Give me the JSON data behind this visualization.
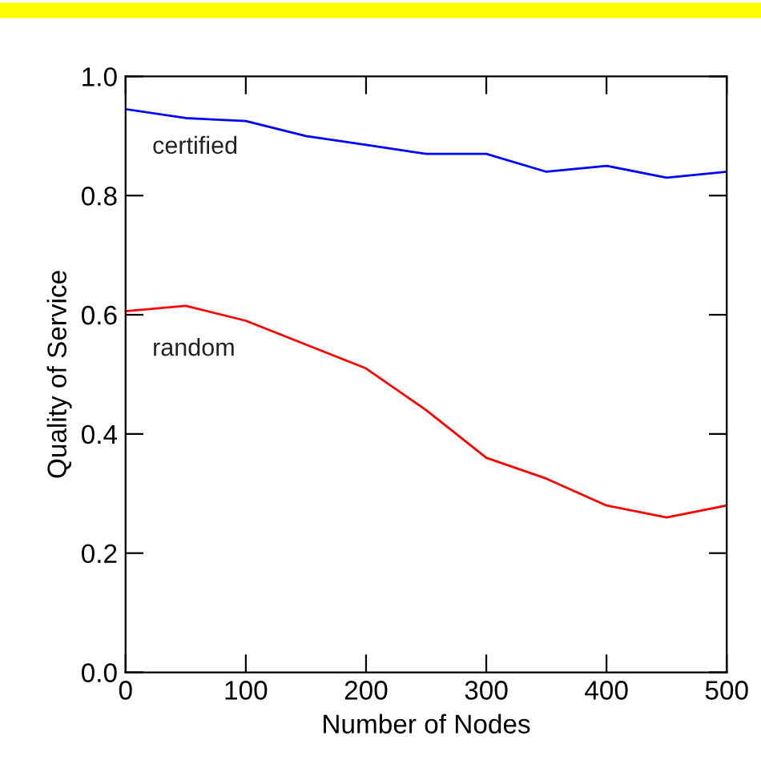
{
  "chart_data": {
    "type": "line",
    "xlabel": "Number of Nodes",
    "ylabel": "Quality of Service",
    "x": [
      0,
      50,
      100,
      150,
      200,
      250,
      300,
      350,
      400,
      450,
      500
    ],
    "series": [
      {
        "name": "certified",
        "color": "#0000ff",
        "values": [
          0.945,
          0.93,
          0.925,
          0.9,
          0.885,
          0.87,
          0.87,
          0.84,
          0.85,
          0.83,
          0.84
        ]
      },
      {
        "name": "random",
        "color": "#ff0000",
        "values": [
          0.606,
          0.615,
          0.59,
          0.55,
          0.51,
          0.44,
          0.36,
          0.325,
          0.28,
          0.26,
          0.28
        ]
      }
    ],
    "xlim": [
      0,
      500
    ],
    "xticks": [
      0,
      100,
      200,
      300,
      400,
      500
    ],
    "ylim": [
      0,
      1
    ],
    "yticks": [
      {
        "value": 0,
        "label": "0.0"
      },
      {
        "value": 0.2,
        "label": "0.2"
      },
      {
        "value": 0.4,
        "label": "0.4"
      },
      {
        "value": 0.6,
        "label": "0.6"
      },
      {
        "value": 0.8,
        "label": "0.8"
      },
      {
        "value": 1,
        "label": "1.0"
      }
    ],
    "grid": false,
    "legend": false,
    "marker": "none",
    "line_style": "solid"
  }
}
